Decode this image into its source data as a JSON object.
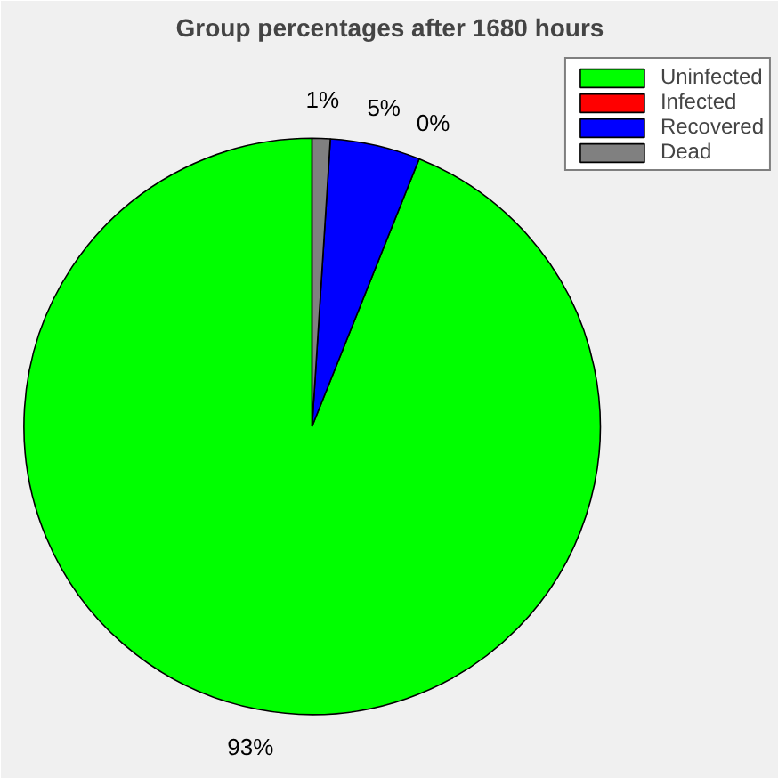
{
  "chart_data": {
    "type": "pie",
    "title": "Group percentages after 1680 hours",
    "categories": [
      "Uninfected",
      "Infected",
      "Recovered",
      "Dead"
    ],
    "values": [
      93,
      0,
      5,
      1
    ],
    "value_labels": [
      "93%",
      "0%",
      "5%",
      "1%"
    ],
    "colors": [
      "#00ff00",
      "#ff0000",
      "#0000ff",
      "#808080"
    ],
    "legend": "top right"
  }
}
